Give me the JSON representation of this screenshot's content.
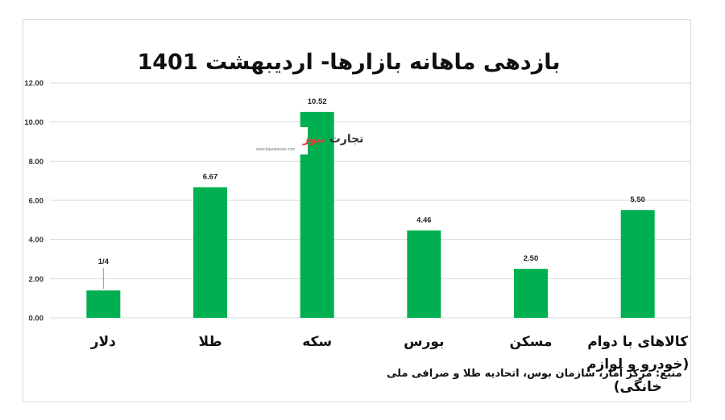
{
  "chart_data": {
    "type": "bar",
    "title": "بازدهی ماهانه بازارها- اردیبهشت 1401",
    "categories": [
      "دلار",
      "طلا",
      "سکه",
      "بورس",
      "مسکن",
      "کالاهای با دوام|(خودرو و لوازم|خانگی)"
    ],
    "values": [
      1.4,
      6.67,
      10.52,
      4.46,
      2.5,
      5.5
    ],
    "data_labels": [
      "1/4",
      "6.67",
      "10.52",
      "4.46",
      "2.50",
      "5.50"
    ],
    "ylim": [
      0,
      12
    ],
    "yticks": [
      "0.00",
      "2.00",
      "4.00",
      "6.00",
      "8.00",
      "10.00",
      "12.00"
    ],
    "bar_color": "#00b050",
    "grid": true,
    "source_note": "منبع: مرکز آمار، سازمان بوس، اتحادیه طلا و صرافی ملی"
  },
  "watermark": {
    "part1": "تجارت",
    "part2": "نیوز",
    "site": "www.tejaratnews.com"
  }
}
